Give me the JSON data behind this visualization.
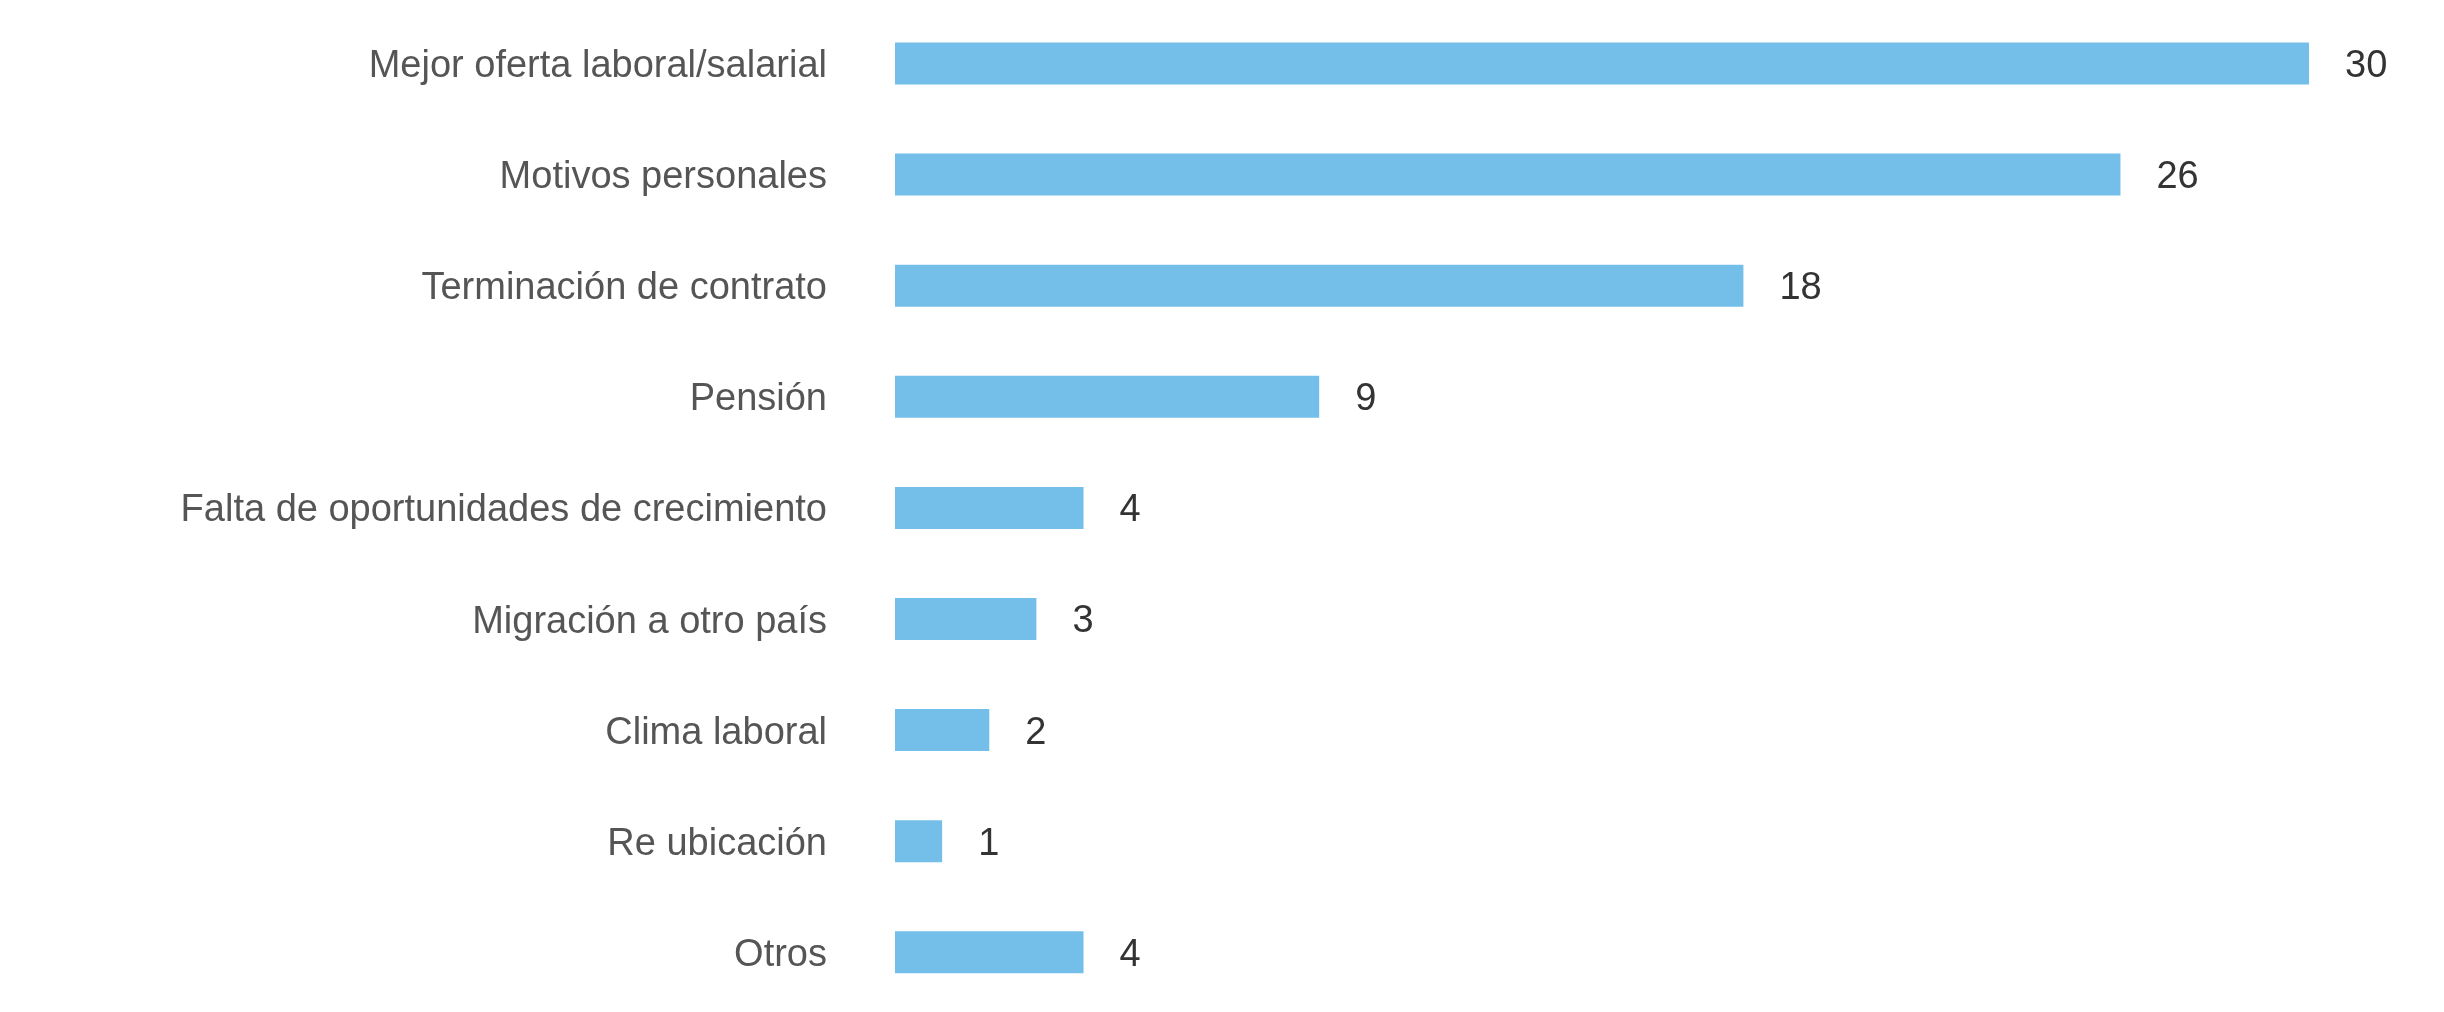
{
  "chart_data": {
    "type": "bar",
    "orientation": "horizontal",
    "categories": [
      "Mejor oferta laboral/salarial",
      "Motivos personales",
      "Terminación de contrato",
      "Pensión",
      "Falta de oportunidades de crecimiento",
      "Migración a otro país",
      "Clima laboral",
      "Re ubicación",
      "Otros"
    ],
    "values": [
      30,
      26,
      18,
      9,
      4,
      3,
      2,
      1,
      4
    ],
    "color": "#74bfea",
    "data_labels": true
  }
}
